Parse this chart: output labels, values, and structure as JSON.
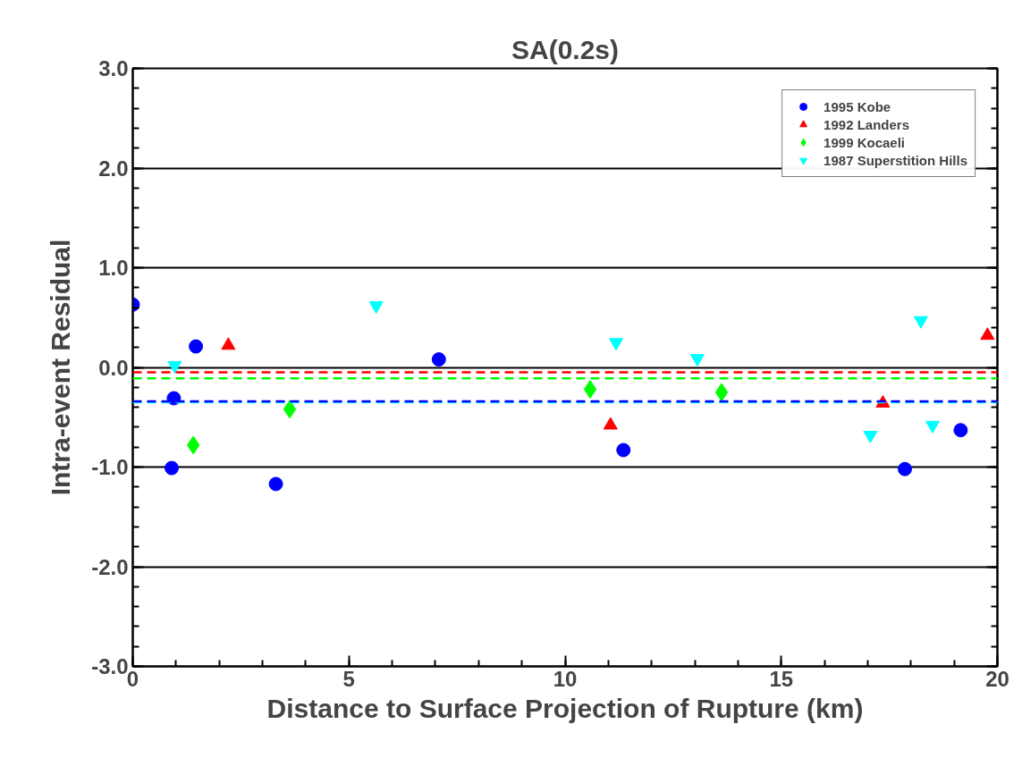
{
  "chart_data": {
    "type": "scatter",
    "title": "SA(0.2s)",
    "xlabel": "Distance to Surface Projection of Rupture (km)",
    "ylabel": "Intra-event Residual",
    "xlim": [
      0,
      20
    ],
    "ylim": [
      -3,
      3
    ],
    "xticks": [
      0,
      5,
      10,
      15,
      20
    ],
    "yticks": [
      {
        "value": -3,
        "label": "-3.0"
      },
      {
        "value": -2,
        "label": "-2.0"
      },
      {
        "value": -1,
        "label": "-1.0"
      },
      {
        "value": 0,
        "label": "0.0"
      },
      {
        "value": 1,
        "label": "1.0"
      },
      {
        "value": 2,
        "label": "2.0"
      },
      {
        "value": 3,
        "label": "3.0"
      }
    ],
    "grid": "y",
    "legend": "top right",
    "series": [
      {
        "name": "1995 Kobe",
        "color": "#0000ff",
        "x": [
          0.0,
          0.95,
          0.9,
          1.46,
          3.31,
          7.08,
          11.35,
          17.86,
          19.15
        ],
        "values": [
          0.63,
          -0.31,
          -1.01,
          0.21,
          -1.17,
          0.08,
          -0.83,
          -1.02,
          -0.63
        ]
      },
      {
        "name": "1992 Landers",
        "color": "#ff0000",
        "x": [
          2.21,
          11.05,
          17.35,
          19.77
        ],
        "values": [
          0.22,
          -0.58,
          -0.36,
          0.32
        ]
      },
      {
        "name": "1999 Kocaeli",
        "color": "#00ff00",
        "x": [
          1.4,
          3.63,
          10.58,
          13.62
        ],
        "values": [
          -0.78,
          -0.42,
          -0.22,
          -0.25
        ]
      },
      {
        "name": "1987 Superstition Hills",
        "color": "#00ffff",
        "x": [
          0.97,
          5.63,
          11.18,
          13.06,
          17.06,
          18.23,
          18.5
        ],
        "values": [
          0.02,
          0.62,
          0.25,
          0.09,
          -0.68,
          0.47,
          -0.58
        ]
      }
    ],
    "ref_lines": [
      {
        "axis": "y",
        "value": -0.05,
        "color": "#ff0000",
        "line_style": "dashed"
      },
      {
        "axis": "y",
        "value": -0.11,
        "color": "#00ff00",
        "line_style": "dashed"
      },
      {
        "axis": "y",
        "value": -0.35,
        "color": "#00ffff",
        "line_style": "dashed"
      },
      {
        "axis": "y",
        "value": -0.34,
        "color": "#0000ff",
        "line_style": "dashed"
      }
    ]
  }
}
